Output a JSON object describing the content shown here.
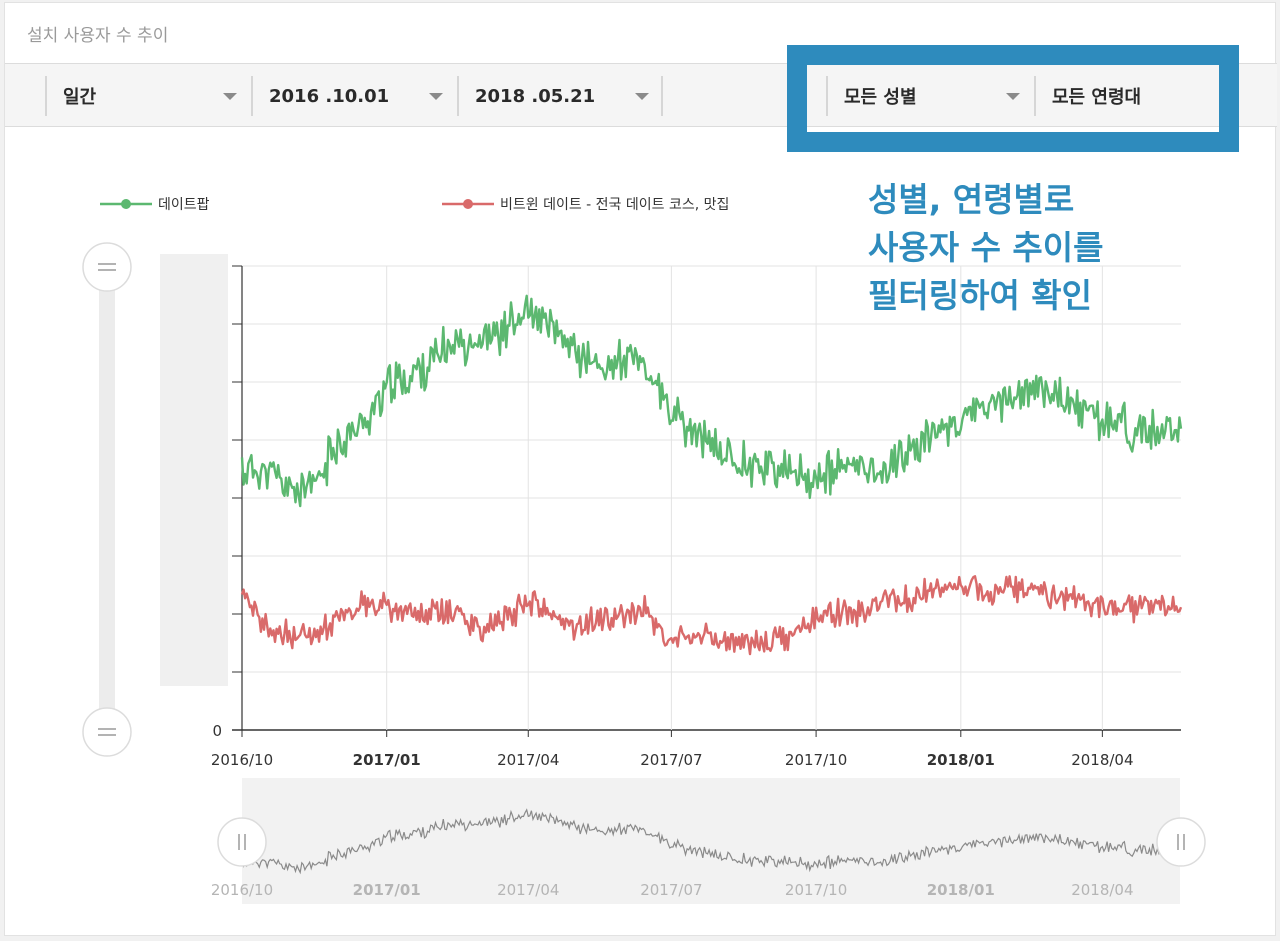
{
  "card": {
    "title": "설치 사용자 수 추이"
  },
  "filters": {
    "period": "일간",
    "start_date": "2016 .10.01",
    "end_date": "2018 .05.21",
    "gender": "모든 성별",
    "age": "모든 연령대"
  },
  "annotation": {
    "lines": [
      "성별, 연령별로",
      "사용자 수 추이를",
      "필터링하여 확인"
    ]
  },
  "colors": {
    "series1": "#5cb870",
    "series2": "#d96a6a",
    "highlight": "#2e8bbd",
    "navigator_line": "#8a8a8a"
  },
  "chart_data": {
    "type": "line",
    "x_tick_labels": [
      {
        "label": "2016/10",
        "bold": false
      },
      {
        "label": "2017/01",
        "bold": true
      },
      {
        "label": "2017/04",
        "bold": false
      },
      {
        "label": "2017/07",
        "bold": false
      },
      {
        "label": "2017/10",
        "bold": false
      },
      {
        "label": "2018/01",
        "bold": true
      },
      {
        "label": "2018/04",
        "bold": false
      }
    ],
    "y_tick_labels": [
      "0"
    ],
    "xlim": [
      "2016-10-01",
      "2018-05-21"
    ],
    "grid": true,
    "legend_position": "top-left",
    "series": [
      {
        "name": "데이트팝",
        "points": [
          [
            "2016-10-01",
            0.56
          ],
          [
            "2016-10-15",
            0.56
          ],
          [
            "2016-11-01",
            0.52
          ],
          [
            "2016-11-15",
            0.52
          ],
          [
            "2016-12-01",
            0.62
          ],
          [
            "2016-12-15",
            0.65
          ],
          [
            "2017-01-01",
            0.74
          ],
          [
            "2017-01-15",
            0.76
          ],
          [
            "2017-02-01",
            0.8
          ],
          [
            "2017-02-15",
            0.84
          ],
          [
            "2017-03-01",
            0.84
          ],
          [
            "2017-03-15",
            0.86
          ],
          [
            "2017-04-01",
            0.9
          ],
          [
            "2017-04-15",
            0.86
          ],
          [
            "2017-05-01",
            0.82
          ],
          [
            "2017-05-15",
            0.78
          ],
          [
            "2017-06-01",
            0.8
          ],
          [
            "2017-06-15",
            0.78
          ],
          [
            "2017-07-01",
            0.68
          ],
          [
            "2017-07-15",
            0.64
          ],
          [
            "2017-08-01",
            0.6
          ],
          [
            "2017-08-15",
            0.58
          ],
          [
            "2017-09-01",
            0.57
          ],
          [
            "2017-09-15",
            0.55
          ],
          [
            "2017-10-01",
            0.54
          ],
          [
            "2017-10-15",
            0.56
          ],
          [
            "2017-11-01",
            0.57
          ],
          [
            "2017-11-15",
            0.56
          ],
          [
            "2017-12-01",
            0.61
          ],
          [
            "2017-12-15",
            0.64
          ],
          [
            "2018-01-01",
            0.67
          ],
          [
            "2018-01-15",
            0.69
          ],
          [
            "2018-02-01",
            0.72
          ],
          [
            "2018-02-15",
            0.73
          ],
          [
            "2018-03-01",
            0.73
          ],
          [
            "2018-03-15",
            0.69
          ],
          [
            "2018-04-01",
            0.67
          ],
          [
            "2018-04-15",
            0.66
          ],
          [
            "2018-05-01",
            0.64
          ],
          [
            "2018-05-21",
            0.63
          ]
        ]
      },
      {
        "name": "비트윈 데이트 - 전국 데이트 코스, 맛집",
        "points": [
          [
            "2016-10-01",
            0.28
          ],
          [
            "2016-10-15",
            0.22
          ],
          [
            "2016-11-01",
            0.2
          ],
          [
            "2016-11-15",
            0.21
          ],
          [
            "2016-12-01",
            0.24
          ],
          [
            "2016-12-15",
            0.27
          ],
          [
            "2017-01-01",
            0.27
          ],
          [
            "2017-01-15",
            0.25
          ],
          [
            "2017-02-01",
            0.25
          ],
          [
            "2017-02-15",
            0.26
          ],
          [
            "2017-03-01",
            0.22
          ],
          [
            "2017-03-15",
            0.23
          ],
          [
            "2017-04-01",
            0.28
          ],
          [
            "2017-04-15",
            0.25
          ],
          [
            "2017-05-01",
            0.22
          ],
          [
            "2017-05-15",
            0.24
          ],
          [
            "2017-06-01",
            0.25
          ],
          [
            "2017-06-15",
            0.26
          ],
          [
            "2017-07-01",
            0.19
          ],
          [
            "2017-07-15",
            0.2
          ],
          [
            "2017-08-01",
            0.2
          ],
          [
            "2017-08-15",
            0.19
          ],
          [
            "2017-09-01",
            0.19
          ],
          [
            "2017-09-15",
            0.2
          ],
          [
            "2017-10-01",
            0.25
          ],
          [
            "2017-10-15",
            0.25
          ],
          [
            "2017-11-01",
            0.25
          ],
          [
            "2017-11-15",
            0.28
          ],
          [
            "2017-12-01",
            0.28
          ],
          [
            "2017-12-15",
            0.3
          ],
          [
            "2018-01-01",
            0.31
          ],
          [
            "2018-01-15",
            0.3
          ],
          [
            "2018-02-01",
            0.31
          ],
          [
            "2018-02-15",
            0.3
          ],
          [
            "2018-03-01",
            0.29
          ],
          [
            "2018-03-15",
            0.28
          ],
          [
            "2018-04-01",
            0.26
          ],
          [
            "2018-04-15",
            0.26
          ],
          [
            "2018-05-01",
            0.27
          ],
          [
            "2018-05-21",
            0.26
          ]
        ]
      }
    ]
  }
}
